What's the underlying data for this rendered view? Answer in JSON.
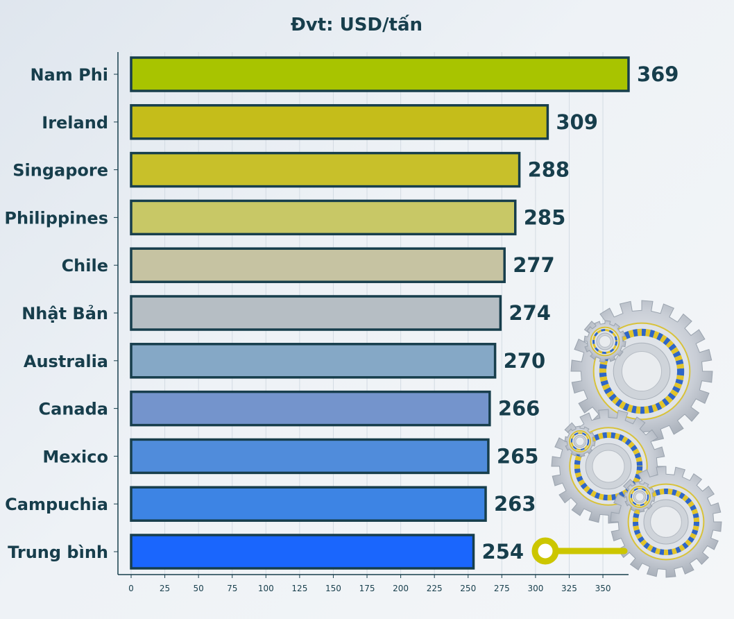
{
  "chart_data": {
    "type": "bar",
    "orientation": "horizontal",
    "title": "Đvt: USD/tấn",
    "xlabel": "",
    "ylabel": "",
    "categories": [
      "Nam Phi",
      "Ireland",
      "Singapore",
      "Philippines",
      "Chile",
      "Nhật Bản",
      "Australia",
      "Canada",
      "Mexico",
      "Campuchia",
      "Trung bình"
    ],
    "values": [
      369,
      309,
      288,
      285,
      277,
      274,
      270,
      266,
      265,
      263,
      254
    ],
    "xlim": [
      0,
      370
    ],
    "ticks": [
      0,
      25,
      50,
      75,
      100,
      125,
      150,
      175,
      200,
      225,
      250,
      275,
      300,
      325,
      350
    ],
    "grid": true,
    "legend": "none",
    "colors": [
      "#a8c400",
      "#c5bd1a",
      "#c8c02a",
      "#c8c866",
      "#c6c3a2",
      "#b6bec4",
      "#85a8c6",
      "#7494cc",
      "#508cdb",
      "#3d84e4",
      "#1a66fd"
    ],
    "bar_edge_color": "#173e4c"
  }
}
